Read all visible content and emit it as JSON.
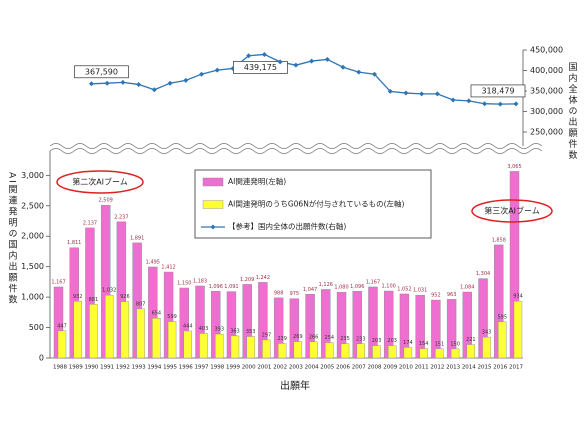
{
  "chart_data": {
    "type": "bar",
    "x_label": "出願年",
    "y_label": "AI関連発明の国内出願件数",
    "y2_label": "国内全体の出願件数",
    "categories": [
      "1988",
      "1989",
      "1990",
      "1991",
      "1992",
      "1993",
      "1994",
      "1995",
      "1996",
      "1997",
      "1998",
      "1999",
      "2000",
      "2001",
      "2002",
      "2003",
      "2004",
      "2005",
      "2006",
      "2007",
      "2008",
      "2009",
      "2010",
      "2011",
      "2012",
      "2013",
      "2014",
      "2015",
      "2016",
      "2017"
    ],
    "series": [
      {
        "name": "AI関連発明(左軸)",
        "type": "bar",
        "color": "#ee6fd0",
        "values": [
          1167,
          1811,
          2137,
          2509,
          2237,
          1891,
          1495,
          1412,
          1150,
          1183,
          1096,
          1091,
          1209,
          1242,
          988,
          975,
          1047,
          1126,
          1080,
          1096,
          1167,
          1100,
          1052,
          1031,
          952,
          963,
          1084,
          1304,
          1858,
          3065
        ],
        "value_labels": [
          "1,167",
          "1,811",
          "2,137",
          "2,509",
          "2,237",
          "1,891",
          "1,495",
          "1,412",
          "1,150",
          "1,183",
          "1,096",
          "1,091",
          "1,209",
          "1,242",
          "988",
          "975",
          "1,047",
          "1,126",
          "1,080",
          "1,096",
          "1,167",
          "1,100",
          "1,052",
          "1,031",
          "952",
          "963",
          "1,084",
          "1,304",
          "1,858",
          "3,065"
        ]
      },
      {
        "name": "AI関連発明のうちG06Nが付与されているもの(左軸)",
        "type": "bar",
        "color": "#ffff33",
        "values": [
          447,
          932,
          881,
          1032,
          926,
          807,
          654,
          599,
          444,
          403,
          393,
          363,
          353,
          297,
          239,
          269,
          266,
          254,
          235,
          233,
          203,
          203,
          174,
          154,
          151,
          150,
          221,
          343,
          595,
          934
        ],
        "value_labels": [
          "447",
          "932",
          "881",
          "1,032",
          "926",
          "807",
          "654",
          "599",
          "444",
          "403",
          "393",
          "363",
          "353",
          "297",
          "239",
          "269",
          "266",
          "254",
          "235",
          "233",
          "203",
          "203",
          "174",
          "154",
          "151",
          "150",
          "221",
          "343",
          "595",
          "934"
        ]
      },
      {
        "name": "【参考】国内全体の出願件数(右軸)",
        "type": "line",
        "axis": "y2",
        "color": "#2e75b6",
        "values": [
          null,
          null,
          367590,
          369000,
          371000,
          366000,
          353000,
          369000,
          376000,
          391000,
          401000,
          405000,
          436000,
          439175,
          421000,
          413000,
          423000,
          427000,
          408000,
          396000,
          391000,
          349000,
          345000,
          343000,
          343000,
          328000,
          326000,
          319000,
          318000,
          318479
        ],
        "value_labels": [
          null,
          null,
          "367,590",
          null,
          null,
          null,
          null,
          null,
          null,
          null,
          null,
          null,
          null,
          "439,175",
          null,
          null,
          null,
          null,
          null,
          null,
          null,
          null,
          null,
          null,
          null,
          null,
          null,
          null,
          null,
          "318,479"
        ]
      }
    ],
    "ylim": [
      0,
      3400
    ],
    "yticks": [
      0,
      500,
      {
        "value": 1000,
        "label": "1,000"
      },
      {
        "value": 1500,
        "label": "1,500"
      },
      {
        "value": 2000,
        "label": "2,000"
      },
      {
        "value": 2500,
        "label": "2,500"
      },
      {
        "value": 3000,
        "label": "3,000"
      }
    ],
    "y2lim": [
      250000,
      450000
    ],
    "y2ticks": [
      {
        "value": 250000,
        "label": "250,000"
      },
      {
        "value": 300000,
        "label": "300,000"
      },
      {
        "value": 350000,
        "label": "350,000"
      },
      {
        "value": 400000,
        "label": "400,000"
      },
      {
        "value": 450000,
        "label": "450,000"
      }
    ],
    "annotations": [
      "第二次AIブーム",
      "第三次AIブーム"
    ]
  }
}
